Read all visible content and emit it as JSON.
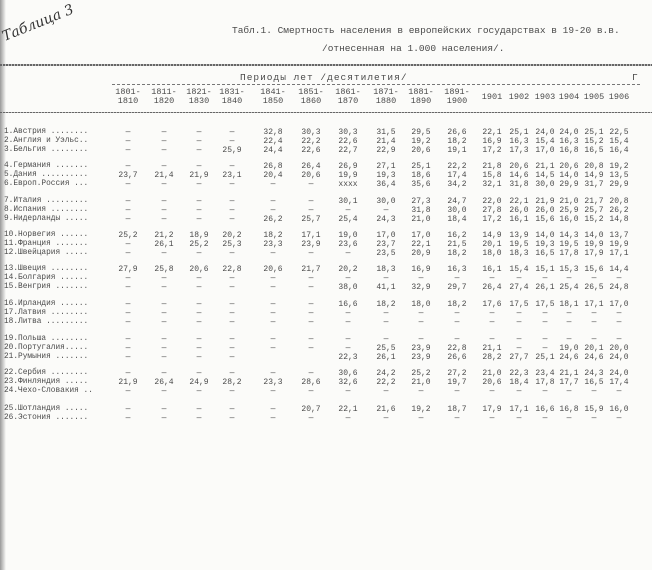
{
  "handwritten_note": "Таблица 3",
  "title": "Табл.1. Смертность населения в европейских государствах в 19-20 в.в.",
  "subtitle": "/отнесенная на 1.000 населения/.",
  "header": {
    "periods_label": "Периоды  лет /десятилетия/",
    "right_mark": "Г",
    "columns": [
      [
        "1801-",
        "1810"
      ],
      [
        "1811-",
        "1820"
      ],
      [
        "1821-",
        "1830"
      ],
      [
        "1831-",
        "1840"
      ],
      [
        "1841-",
        "1850"
      ],
      [
        "1851-",
        "1860"
      ],
      [
        "1861-",
        "1870"
      ],
      [
        "1871-",
        "1880"
      ],
      [
        "1881-",
        "1890"
      ],
      [
        "1891-",
        "1900"
      ],
      [
        "1901",
        ""
      ],
      [
        "1902",
        ""
      ],
      [
        "1903",
        ""
      ],
      [
        "1904",
        ""
      ],
      [
        "1905",
        ""
      ],
      [
        "1906",
        ""
      ]
    ]
  },
  "rows": [
    {
      "name": "1.Австрия ........",
      "values": [
        "—",
        "—",
        "—",
        "—",
        "32,8",
        "30,3",
        "30,3",
        "31,5",
        "29,5",
        "26,6",
        "22,1",
        "25,1",
        "24,0",
        "24,0",
        "25,1",
        "22,5"
      ]
    },
    {
      "name": "2.Англия и Уэльс..",
      "values": [
        "—",
        "—",
        "—",
        "—",
        "22,4",
        "22,2",
        "22,6",
        "21,4",
        "19,2",
        "18,2",
        "16,9",
        "16,3",
        "15,4",
        "16,3",
        "15,2",
        "15,4"
      ]
    },
    {
      "name": "3.Бельгия ........",
      "values": [
        "—",
        "—",
        "—",
        "25,9",
        "24,4",
        "22,6",
        "22,7",
        "22,9",
        "20,6",
        "19,1",
        "17,2",
        "17,3",
        "17,0",
        "16,8",
        "16,5",
        "16,4"
      ]
    },
    {
      "name": "4.Германия .......",
      "values": [
        "—",
        "—",
        "—",
        "—",
        "26,8",
        "26,4",
        "26,9",
        "27,1",
        "25,1",
        "22,2",
        "21,8",
        "20,6",
        "21,1",
        "20,6",
        "20,8",
        "19,2"
      ]
    },
    {
      "name": "5.Дания ..........",
      "values": [
        "23,7",
        "21,4",
        "21,9",
        "23,1",
        "20,4",
        "20,6",
        "19,9",
        "19,3",
        "18,6",
        "17,4",
        "15,8",
        "14,6",
        "14,5",
        "14,0",
        "14,9",
        "13,5"
      ]
    },
    {
      "name": "6.Европ.Россия ...",
      "values": [
        "—",
        "—",
        "—",
        "—",
        "—",
        "—",
        "xxxx",
        "36,4",
        "35,6",
        "34,2",
        "32,1",
        "31,8",
        "30,0",
        "29,9",
        "31,7",
        "29,9"
      ]
    },
    {
      "name": "7.Италия .........",
      "values": [
        "—",
        "—",
        "—",
        "—",
        "—",
        "—",
        "30,1",
        "30,0",
        "27,3",
        "24,7",
        "22,0",
        "22,1",
        "21,9",
        "21,0",
        "21,7",
        "20,8"
      ]
    },
    {
      "name": "8.Испания ........",
      "values": [
        "—",
        "—",
        "—",
        "—",
        "—",
        "—",
        "—",
        "—",
        "31,8",
        "30,0",
        "27,8",
        "26,0",
        "26,0",
        "25,9",
        "25,7",
        "26,2"
      ]
    },
    {
      "name": "9.Нидерланды .....",
      "values": [
        "—",
        "—",
        "—",
        "—",
        "26,2",
        "25,7",
        "25,4",
        "24,3",
        "21,0",
        "18,4",
        "17,2",
        "16,1",
        "15,6",
        "16,0",
        "15,2",
        "14,8"
      ]
    },
    {
      "name": "10.Норвегия ......",
      "values": [
        "25,2",
        "21,2",
        "18,9",
        "20,2",
        "18,2",
        "17,1",
        "19,0",
        "17,0",
        "17,0",
        "16,2",
        "14,9",
        "13,9",
        "14,0",
        "14,3",
        "14,0",
        "13,7"
      ]
    },
    {
      "name": "11.Франция .......",
      "values": [
        "—",
        "26,1",
        "25,2",
        "25,3",
        "23,3",
        "23,9",
        "23,6",
        "23,7",
        "22,1",
        "21,5",
        "20,1",
        "19,5",
        "19,3",
        "19,5",
        "19,9",
        "19,9"
      ]
    },
    {
      "name": "12.Швейцария .....",
      "values": [
        "—",
        "—",
        "—",
        "—",
        "—",
        "—",
        "—",
        "23,5",
        "20,9",
        "18,2",
        "18,0",
        "18,3",
        "16,5",
        "17,8",
        "17,9",
        "17,1"
      ]
    },
    {
      "name": "13.Швеция ........",
      "values": [
        "27,9",
        "25,8",
        "20,6",
        "22,8",
        "20,6",
        "21,7",
        "20,2",
        "18,3",
        "16,9",
        "16,3",
        "16,1",
        "15,4",
        "15,1",
        "15,3",
        "15,6",
        "14,4"
      ]
    },
    {
      "name": "14.Болгария ......",
      "values": [
        "—",
        "—",
        "—",
        "—",
        "—",
        "—",
        "—",
        "—",
        "—",
        "—",
        "—",
        "—",
        "—",
        "—",
        "—",
        "—"
      ]
    },
    {
      "name": "15.Венгрия .......",
      "values": [
        "—",
        "—",
        "—",
        "—",
        "—",
        "—",
        "38,0",
        "41,1",
        "32,9",
        "29,7",
        "26,4",
        "27,4",
        "26,1",
        "25,4",
        "26,5",
        "24,8"
      ]
    },
    {
      "name": "16.Ирландия ......",
      "values": [
        "—",
        "—",
        "—",
        "—",
        "—",
        "—",
        "16,6",
        "18,2",
        "18,0",
        "18,2",
        "17,6",
        "17,5",
        "17,5",
        "18,1",
        "17,1",
        "17,0"
      ]
    },
    {
      "name": "17.Латвия ........",
      "values": [
        "—",
        "—",
        "—",
        "—",
        "—",
        "—",
        "—",
        "—",
        "—",
        "—",
        "—",
        "—",
        "—",
        "—",
        "—",
        "—"
      ]
    },
    {
      "name": "18.Литва .........",
      "values": [
        "—",
        "—",
        "—",
        "—",
        "—",
        "—",
        "—",
        "—",
        "—",
        "—",
        "—",
        "—",
        "—",
        "—",
        "—",
        "—"
      ]
    },
    {
      "name": "19.Польша ........",
      "values": [
        "—",
        "—",
        "—",
        "—",
        "—",
        "—",
        "—",
        "—",
        "—",
        "—",
        "—",
        "—",
        "—",
        "—",
        "—",
        "—"
      ]
    },
    {
      "name": "20.Португалия.....",
      "values": [
        "—",
        "—",
        "—",
        "—",
        "—",
        "—",
        "—",
        "25,5",
        "23,9",
        "22,8",
        "21,1",
        "—",
        "—",
        "19,0",
        "20,1",
        "20,0"
      ]
    },
    {
      "name": "21.Румыния .......",
      "values": [
        "—",
        "—",
        "—",
        "—",
        "",
        "",
        "22,3",
        "26,1",
        "23,9",
        "26,6",
        "28,2",
        "27,7",
        "25,1",
        "24,6",
        "24,6",
        "24,0"
      ]
    },
    {
      "name": "22.Сербия ........",
      "values": [
        "—",
        "—",
        "—",
        "—",
        "—",
        "—",
        "30,6",
        "24,2",
        "25,2",
        "27,2",
        "21,0",
        "22,3",
        "23,4",
        "21,1",
        "24,3",
        "24,0"
      ]
    },
    {
      "name": "23.Финляндия .....",
      "values": [
        "21,9",
        "26,4",
        "24,9",
        "28,2",
        "23,3",
        "28,6",
        "32,6",
        "22,2",
        "21,0",
        "19,7",
        "20,6",
        "18,4",
        "17,8",
        "17,7",
        "16,5",
        "17,4"
      ]
    },
    {
      "name": "24.Чехо-Словакия ..",
      "values": [
        "—",
        "—",
        "—",
        "—",
        "—",
        "—",
        "—",
        "—",
        "—",
        "—",
        "—",
        "—",
        "—",
        "—",
        "—",
        "—"
      ]
    },
    {
      "name": "25.Шотландия .....",
      "values": [
        "—",
        "—",
        "—",
        "—",
        "—",
        "20,7",
        "22,1",
        "21,6",
        "19,2",
        "18,7",
        "17,9",
        "17,1",
        "16,6",
        "16,8",
        "15,9",
        "16,0"
      ]
    },
    {
      "name": "26.Эстония .......",
      "values": [
        "—",
        "—",
        "—",
        "—",
        "—",
        "—",
        "—",
        "—",
        "—",
        "—",
        "—",
        "—",
        "—",
        "—",
        "—",
        "—"
      ]
    }
  ]
}
